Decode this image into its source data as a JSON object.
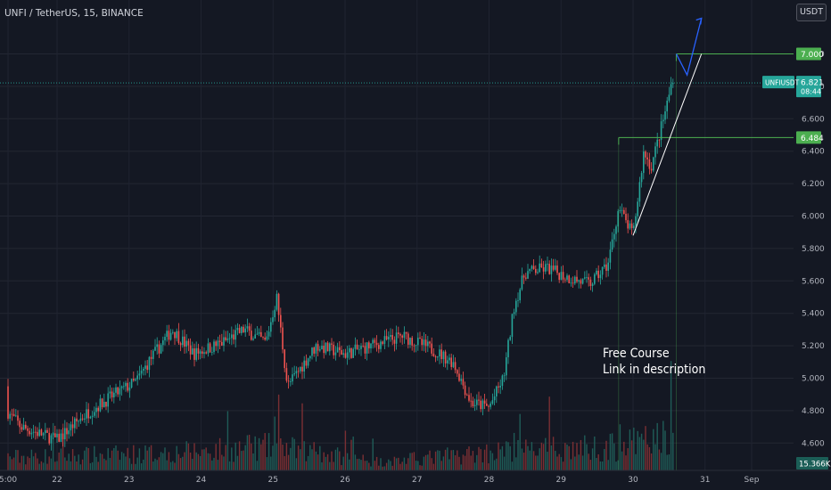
{
  "symbol_title": "UNFI / TetherUS, 15, BINANCE",
  "currency_button": "USDT",
  "annotation": {
    "line1": "Free Course",
    "line2": "Link in description"
  },
  "colors": {
    "background": "#141823",
    "up": "#26a69a",
    "down": "#ef5350",
    "level": "#4caf50",
    "trendline": "#ffffff",
    "arrow": "#2962ff",
    "axis_text": "#b2b5be"
  },
  "chart_data": {
    "type": "candlestick",
    "title": "UNFI / TetherUS, 15, BINANCE",
    "xlabel": "",
    "ylabel": "",
    "ylim": [
      4.45,
      7.25
    ],
    "y_ticks": [
      "7.000",
      "6.800",
      "6.600",
      "6.400",
      "6.200",
      "6.000",
      "5.800",
      "5.600",
      "5.400",
      "5.200",
      "5.000",
      "4.800",
      "4.600"
    ],
    "x_ticks": [
      "5:00",
      "22",
      "23",
      "24",
      "25",
      "26",
      "27",
      "28",
      "29",
      "30",
      "31",
      "Sep"
    ],
    "price_path": [
      {
        "day": 21.0,
        "price": 4.95
      },
      {
        "day": 21.5,
        "price": 4.7
      },
      {
        "day": 22.0,
        "price": 4.62
      },
      {
        "day": 22.4,
        "price": 4.78
      },
      {
        "day": 22.8,
        "price": 4.9
      },
      {
        "day": 23.1,
        "price": 4.98
      },
      {
        "day": 23.3,
        "price": 5.12
      },
      {
        "day": 23.6,
        "price": 5.3
      },
      {
        "day": 23.9,
        "price": 5.15
      },
      {
        "day": 24.3,
        "price": 5.22
      },
      {
        "day": 24.6,
        "price": 5.3
      },
      {
        "day": 24.9,
        "price": 5.22
      },
      {
        "day": 25.05,
        "price": 5.5
      },
      {
        "day": 25.2,
        "price": 4.95
      },
      {
        "day": 25.6,
        "price": 5.2
      },
      {
        "day": 26.0,
        "price": 5.15
      },
      {
        "day": 26.5,
        "price": 5.22
      },
      {
        "day": 26.8,
        "price": 5.26
      },
      {
        "day": 27.2,
        "price": 5.18
      },
      {
        "day": 27.5,
        "price": 5.1
      },
      {
        "day": 27.75,
        "price": 4.85
      },
      {
        "day": 28.0,
        "price": 4.82
      },
      {
        "day": 28.2,
        "price": 5.0
      },
      {
        "day": 28.35,
        "price": 5.45
      },
      {
        "day": 28.5,
        "price": 5.65
      },
      {
        "day": 28.8,
        "price": 5.68
      },
      {
        "day": 29.1,
        "price": 5.62
      },
      {
        "day": 29.4,
        "price": 5.58
      },
      {
        "day": 29.65,
        "price": 5.7
      },
      {
        "day": 29.8,
        "price": 6.05
      },
      {
        "day": 30.0,
        "price": 5.88
      },
      {
        "day": 30.15,
        "price": 6.4
      },
      {
        "day": 30.25,
        "price": 6.3
      },
      {
        "day": 30.45,
        "price": 6.65
      },
      {
        "day": 30.6,
        "price": 6.95
      },
      {
        "day": 30.75,
        "price": 6.82
      }
    ],
    "volume_path": [
      {
        "day": 21.0,
        "value": 0.3
      },
      {
        "day": 22.5,
        "value": 0.35
      },
      {
        "day": 23.5,
        "value": 0.4
      },
      {
        "day": 25.0,
        "value": 0.55
      },
      {
        "day": 26.5,
        "value": 0.2
      },
      {
        "day": 28.2,
        "value": 0.45
      },
      {
        "day": 29.8,
        "value": 0.55
      },
      {
        "day": 30.5,
        "value": 0.8
      }
    ],
    "levels": [
      {
        "value": 7.0,
        "label": "7.000",
        "start_day": 30.6
      },
      {
        "value": 6.484,
        "label": "6.484",
        "start_day": 29.8
      }
    ],
    "current_price": {
      "symbol": "UNFIUSDT",
      "value": 6.821,
      "label": "6.821",
      "countdown": "08:44"
    },
    "volume_label": "15.366K",
    "trendline": {
      "from": {
        "day": 30.0,
        "price": 5.88
      },
      "to": {
        "day": 30.95,
        "price": 7.0
      }
    },
    "projection_arrow": [
      {
        "day": 30.6,
        "price": 7.0
      },
      {
        "day": 30.75,
        "price": 6.87
      },
      {
        "day": 30.95,
        "price": 7.22
      }
    ]
  }
}
